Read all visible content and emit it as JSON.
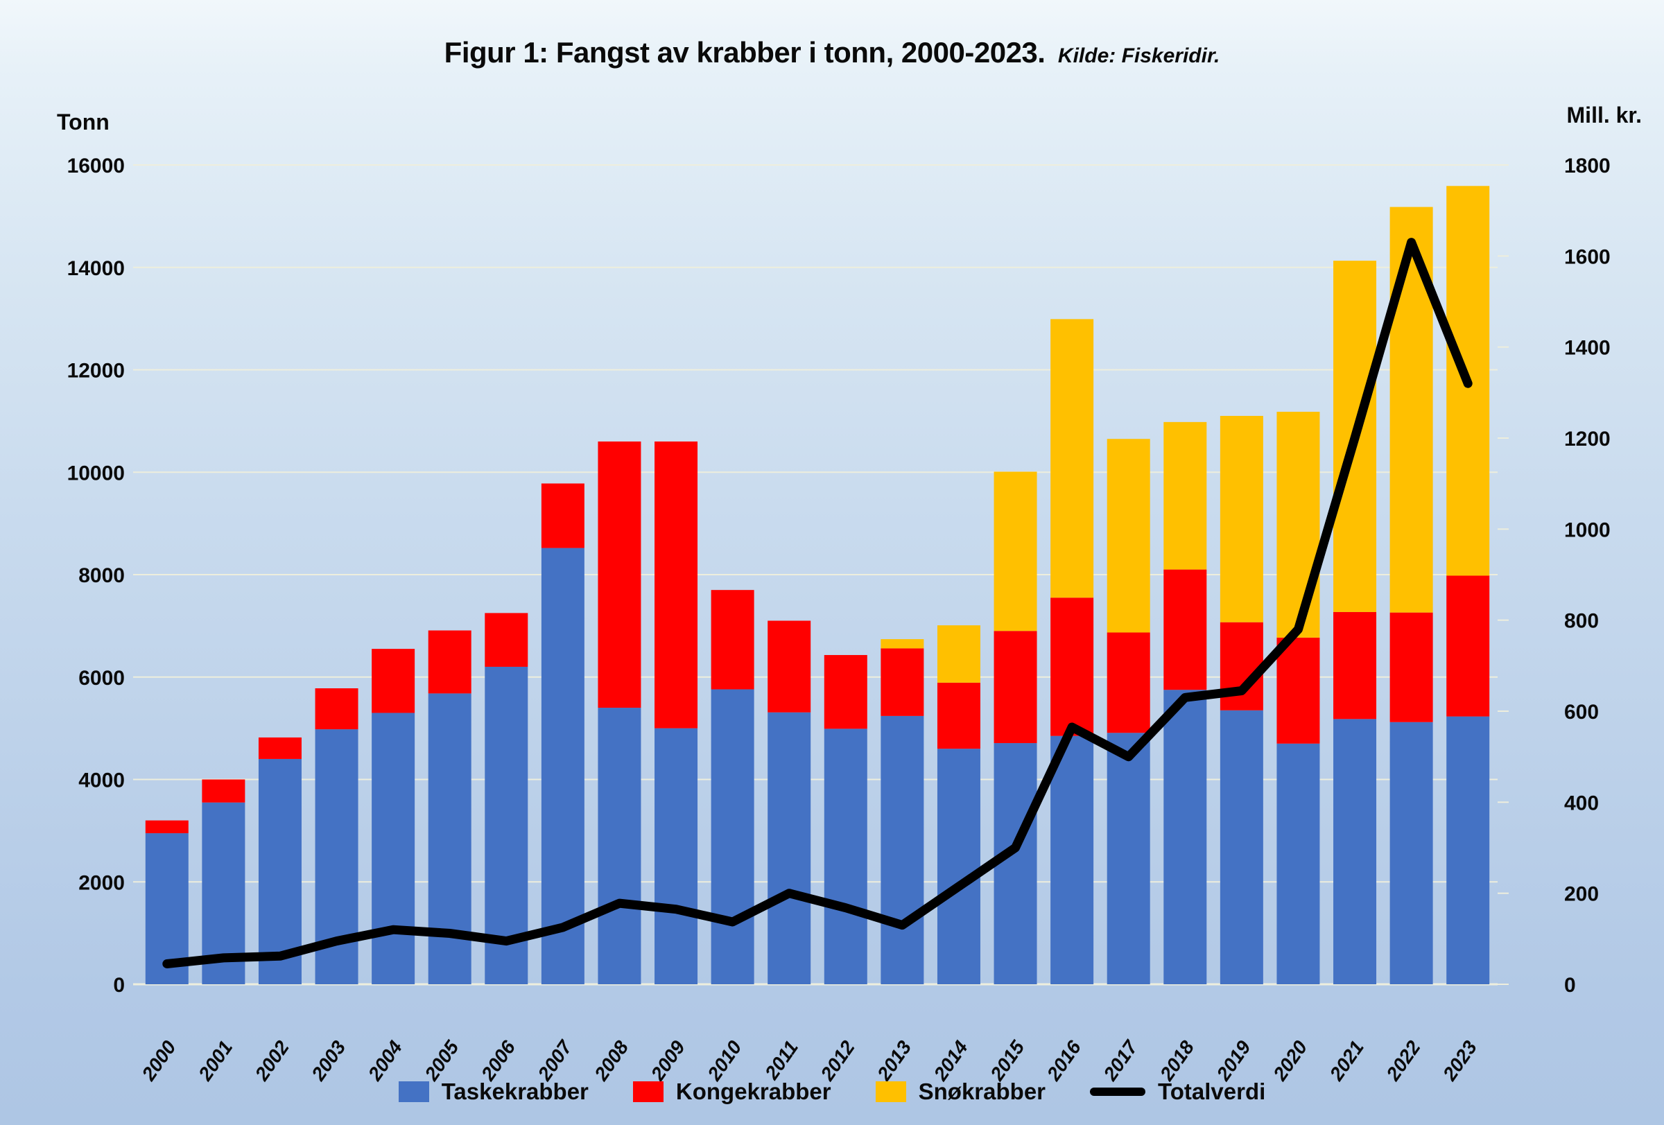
{
  "header": {
    "title": "Figur 1: Fangst av krabber i tonn, 2000-2023.",
    "source": "Kilde: Fiskeridir."
  },
  "axes": {
    "left_title": "Tonn",
    "right_title": "Mill. kr."
  },
  "legend": {
    "items": [
      {
        "label": "Taskekrabber",
        "color": "#4472C4",
        "type": "square"
      },
      {
        "label": "Kongekrabber",
        "color": "#FF0000",
        "type": "square"
      },
      {
        "label": "Snøkrabber",
        "color": "#FFC000",
        "type": "square"
      },
      {
        "label": "Totalverdi",
        "color": "#000000",
        "type": "line"
      }
    ]
  },
  "colors": {
    "background_top": "#f1f7fb",
    "background_bottom": "#aec6e4",
    "gridline": "#eeeedd",
    "taskekrabber": "#4472C4",
    "kongekrabber": "#FF0000",
    "snokrabber": "#FFC000",
    "totalverdi": "#000000"
  },
  "chart_data": {
    "type": "bar",
    "combo": "stacked-bar-with-line",
    "title": "Figur 1: Fangst av krabber i tonn, 2000-2023.",
    "subtitle": "Kilde: Fiskeridir.",
    "categories": [
      "2000",
      "2001",
      "2002",
      "2003",
      "2004",
      "2005",
      "2006",
      "2007",
      "2008",
      "2009",
      "2010",
      "2011",
      "2012",
      "2013",
      "2014",
      "2015",
      "2016",
      "2017",
      "2018",
      "2019",
      "2020",
      "2021",
      "2022",
      "2023"
    ],
    "series": [
      {
        "name": "Taskekrabber",
        "role": "bar",
        "axis": "left",
        "color": "#4472C4",
        "values": [
          2950,
          3550,
          4400,
          4980,
          5300,
          5680,
          6200,
          8520,
          5400,
          5000,
          5760,
          5310,
          4990,
          5240,
          4600,
          4710,
          4850,
          4910,
          5750,
          5350,
          4700,
          5180,
          5120,
          5230
        ]
      },
      {
        "name": "Kongekrabber",
        "role": "bar",
        "axis": "left",
        "color": "#FF0000",
        "values": [
          250,
          450,
          420,
          800,
          1250,
          1230,
          1050,
          1260,
          5200,
          5600,
          1940,
          1790,
          1440,
          1320,
          1290,
          2190,
          2700,
          1960,
          2350,
          1720,
          2070,
          2090,
          2140,
          2750
        ]
      },
      {
        "name": "Snøkrabber",
        "role": "bar",
        "axis": "left",
        "color": "#FFC000",
        "values": [
          0,
          0,
          0,
          0,
          0,
          0,
          0,
          0,
          0,
          0,
          0,
          0,
          0,
          180,
          1120,
          3110,
          5440,
          3780,
          2880,
          4030,
          4410,
          6860,
          7920,
          7610
        ]
      },
      {
        "name": "Totalverdi",
        "role": "line",
        "axis": "right",
        "color": "#000000",
        "values": [
          45,
          58,
          62,
          95,
          120,
          112,
          95,
          125,
          178,
          165,
          137,
          200,
          168,
          130,
          215,
          300,
          565,
          500,
          630,
          645,
          780,
          1200,
          1630,
          1320
        ]
      }
    ],
    "left_axis": {
      "title": "Tonn",
      "min": 0,
      "max": 16000,
      "step": 2000,
      "tick_labels": [
        "0",
        "2000",
        "4000",
        "6000",
        "8000",
        "10000",
        "12000",
        "14000",
        "16000"
      ]
    },
    "right_axis": {
      "title": "Mill. kr.",
      "min": 0,
      "max": 1800,
      "step": 200,
      "tick_labels": [
        "0",
        "200",
        "400",
        "600",
        "800",
        "1000",
        "1200",
        "1400",
        "1600",
        "1800"
      ]
    },
    "grid": true,
    "legend_position": "bottom",
    "x_label_rotation": -55
  }
}
